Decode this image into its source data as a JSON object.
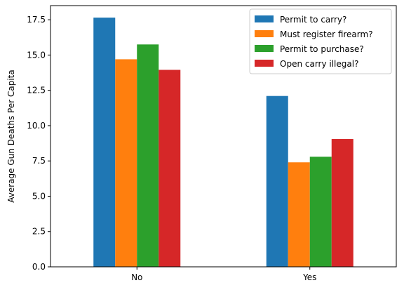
{
  "chart_data": {
    "type": "bar",
    "title": "",
    "xlabel": "",
    "ylabel": "Average Gun Deaths Per Capita",
    "categories": [
      "No",
      "Yes"
    ],
    "ylim": [
      0,
      18.5
    ],
    "yticks": [
      "0.0",
      "2.5",
      "5.0",
      "7.5",
      "10.0",
      "12.5",
      "15.0",
      "17.5"
    ],
    "grid": false,
    "legend_position": "top-right",
    "series": [
      {
        "name": "Permit to carry?",
        "color": "#1f77b4",
        "values": [
          17.65,
          12.1
        ]
      },
      {
        "name": "Must register firearm?",
        "color": "#ff7f0e",
        "values": [
          14.7,
          7.4
        ]
      },
      {
        "name": "Permit to purchase?",
        "color": "#2ca02c",
        "values": [
          15.75,
          7.8
        ]
      },
      {
        "name": "Open carry illegal?",
        "color": "#d62728",
        "values": [
          13.95,
          9.05
        ]
      }
    ]
  }
}
